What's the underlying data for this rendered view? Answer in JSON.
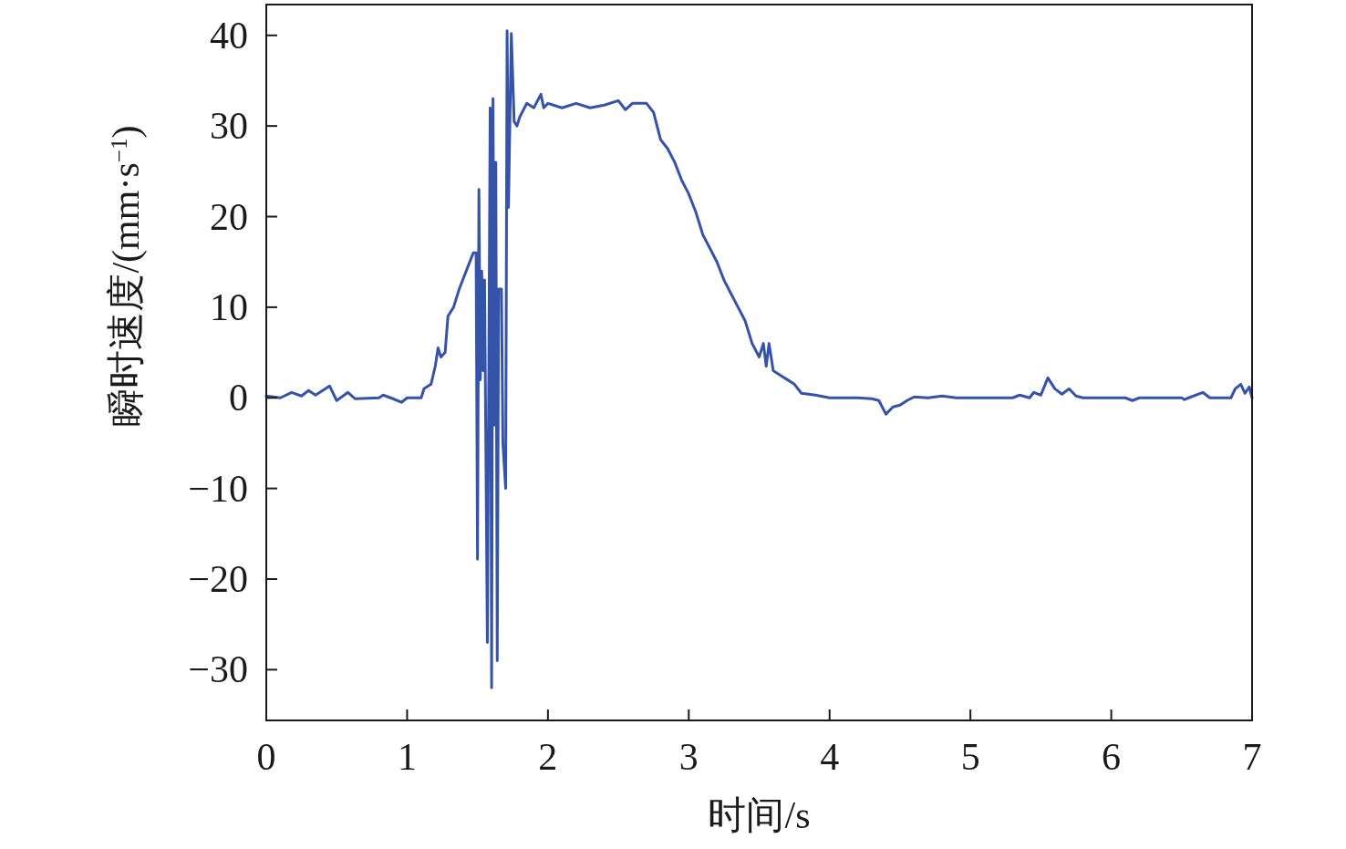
{
  "chart_data": {
    "type": "line",
    "xlabel": "时间/s",
    "ylabel": "瞬时速度/(mm·s$^{−1}$)",
    "xlim": [
      0,
      7
    ],
    "ylim": [
      -35.6,
      43.4
    ],
    "xticks": [
      0,
      1,
      2,
      3,
      4,
      5,
      6,
      7
    ],
    "yticks": [
      -30,
      -20,
      -10,
      0,
      10,
      20,
      30,
      40
    ],
    "grid": false,
    "line_style": "solid",
    "series": [
      {
        "color": "#3553a8",
        "x": [
          0,
          0.1,
          0.18,
          0.25,
          0.3,
          0.35,
          0.45,
          0.5,
          0.58,
          0.63,
          0.8,
          0.83,
          0.9,
          0.96,
          1.0,
          1.1,
          1.12,
          1.17,
          1.2,
          1.22,
          1.24,
          1.27,
          1.29,
          1.33,
          1.37,
          1.42,
          1.47,
          1.49,
          1.5,
          1.51,
          1.52,
          1.53,
          1.54,
          1.55,
          1.57,
          1.59,
          1.6,
          1.61,
          1.62,
          1.63,
          1.64,
          1.65,
          1.67,
          1.68,
          1.7,
          1.71,
          1.72,
          1.74,
          1.76,
          1.78,
          1.8,
          1.85,
          1.9,
          1.95,
          1.97,
          2.0,
          2.1,
          2.2,
          2.3,
          2.4,
          2.5,
          2.55,
          2.6,
          2.7,
          2.75,
          2.8,
          2.85,
          2.9,
          2.95,
          3.0,
          3.05,
          3.1,
          3.15,
          3.2,
          3.25,
          3.3,
          3.35,
          3.4,
          3.45,
          3.5,
          3.53,
          3.55,
          3.57,
          3.6,
          3.65,
          3.7,
          3.75,
          3.8,
          3.9,
          4.0,
          4.2,
          4.3,
          4.35,
          4.4,
          4.45,
          4.5,
          4.55,
          4.6,
          4.7,
          4.8,
          4.9,
          5.3,
          5.35,
          5.42,
          5.45,
          5.5,
          5.55,
          5.6,
          5.65,
          5.7,
          5.75,
          5.8,
          6.1,
          6.15,
          6.2,
          6.5,
          6.52,
          6.55,
          6.65,
          6.7,
          6.85,
          6.88,
          6.92,
          6.95,
          6.98,
          7.0
        ],
        "values": [
          0.2,
          0,
          0.6,
          0.2,
          0.8,
          0.3,
          1.3,
          -0.3,
          0.6,
          -0.1,
          0,
          0.3,
          -0.1,
          -0.5,
          0,
          0,
          1.0,
          1.5,
          3.5,
          5.5,
          4.5,
          5,
          9,
          10,
          12,
          14,
          16,
          16,
          -17.8,
          23,
          2,
          14,
          3,
          13,
          -27,
          32,
          -32,
          33,
          -3,
          26,
          -29,
          12,
          12,
          -5,
          -10,
          40.5,
          21,
          40.2,
          30.5,
          30,
          31,
          32.5,
          32,
          33.5,
          32,
          32.5,
          32,
          32.5,
          32,
          32.3,
          32.8,
          31.8,
          32.5,
          32.5,
          31.5,
          28.5,
          27.5,
          26,
          24,
          22.5,
          20.5,
          18,
          16.5,
          15,
          13,
          11.5,
          10,
          8.5,
          6,
          4.5,
          6,
          3.5,
          6,
          3,
          2.5,
          2,
          1.5,
          0.5,
          0.3,
          0,
          0,
          -0.1,
          -0.3,
          -1.8,
          -1,
          -0.8,
          -0.3,
          0.1,
          0,
          0.2,
          0,
          0,
          0.3,
          0,
          0.6,
          0.3,
          2.2,
          1.0,
          0.4,
          1.0,
          0.2,
          0,
          0,
          -0.3,
          0,
          0,
          -0.2,
          0,
          0.6,
          0,
          0,
          1.0,
          1.5,
          0.5,
          1.2,
          0
        ]
      }
    ]
  }
}
